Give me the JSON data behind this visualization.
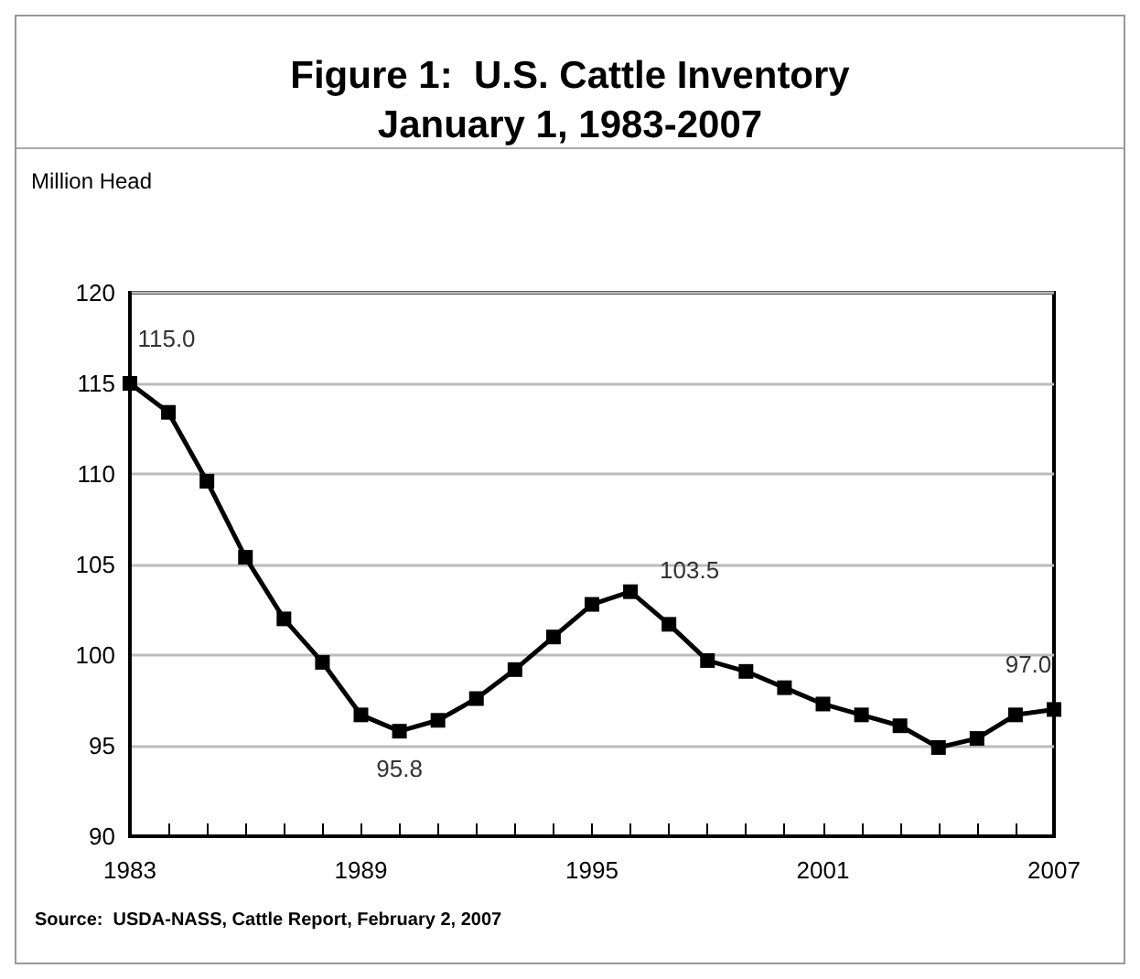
{
  "chart_data": {
    "type": "line",
    "title": "Figure 1:  U.S. Cattle Inventory\nJanuary 1, 1983-2007",
    "ylabel": "Million Head",
    "annotations": [
      "Source:  USDA-NASS, Cattle Report, February 2, 2007"
    ],
    "x": [
      1983,
      1984,
      1985,
      1986,
      1987,
      1988,
      1989,
      1990,
      1991,
      1992,
      1993,
      1994,
      1995,
      1996,
      1997,
      1998,
      1999,
      2000,
      2001,
      2002,
      2003,
      2004,
      2005,
      2006,
      2007
    ],
    "series": [
      {
        "color": "#000000",
        "values": [
          115.0,
          113.4,
          109.6,
          105.4,
          102.0,
          99.6,
          96.7,
          95.8,
          96.4,
          97.6,
          99.2,
          101.0,
          102.8,
          103.5,
          101.7,
          99.7,
          99.1,
          98.2,
          97.3,
          96.7,
          96.1,
          94.9,
          95.4,
          96.7,
          97.0
        ],
        "value_labels": [
          "115.0",
          null,
          null,
          null,
          null,
          null,
          null,
          "95.8",
          null,
          null,
          null,
          null,
          null,
          "103.5",
          null,
          null,
          null,
          null,
          null,
          null,
          null,
          null,
          null,
          null,
          "97.0"
        ]
      }
    ],
    "xlim": [
      1983,
      2007
    ],
    "xticks": [
      1983,
      {
        "value": 1984,
        "label": null
      },
      {
        "value": 1985,
        "label": null
      },
      {
        "value": 1986,
        "label": null
      },
      {
        "value": 1987,
        "label": null
      },
      {
        "value": 1988,
        "label": null
      },
      1989,
      {
        "value": 1990,
        "label": null
      },
      {
        "value": 1991,
        "label": null
      },
      {
        "value": 1992,
        "label": null
      },
      {
        "value": 1993,
        "label": null
      },
      {
        "value": 1994,
        "label": null
      },
      1995,
      {
        "value": 1996,
        "label": null
      },
      {
        "value": 1997,
        "label": null
      },
      {
        "value": 1998,
        "label": null
      },
      {
        "value": 1999,
        "label": null
      },
      {
        "value": 2000,
        "label": null
      },
      2001,
      {
        "value": 2002,
        "label": null
      },
      {
        "value": 2003,
        "label": null
      },
      {
        "value": 2004,
        "label": null
      },
      {
        "value": 2005,
        "label": null
      },
      {
        "value": 2006,
        "label": null
      },
      2007
    ],
    "ylim": [
      90,
      120
    ],
    "yticks": [
      90,
      95,
      100,
      105,
      110,
      115,
      120
    ],
    "grid": "y",
    "marker": "square",
    "line_style": "solid"
  }
}
